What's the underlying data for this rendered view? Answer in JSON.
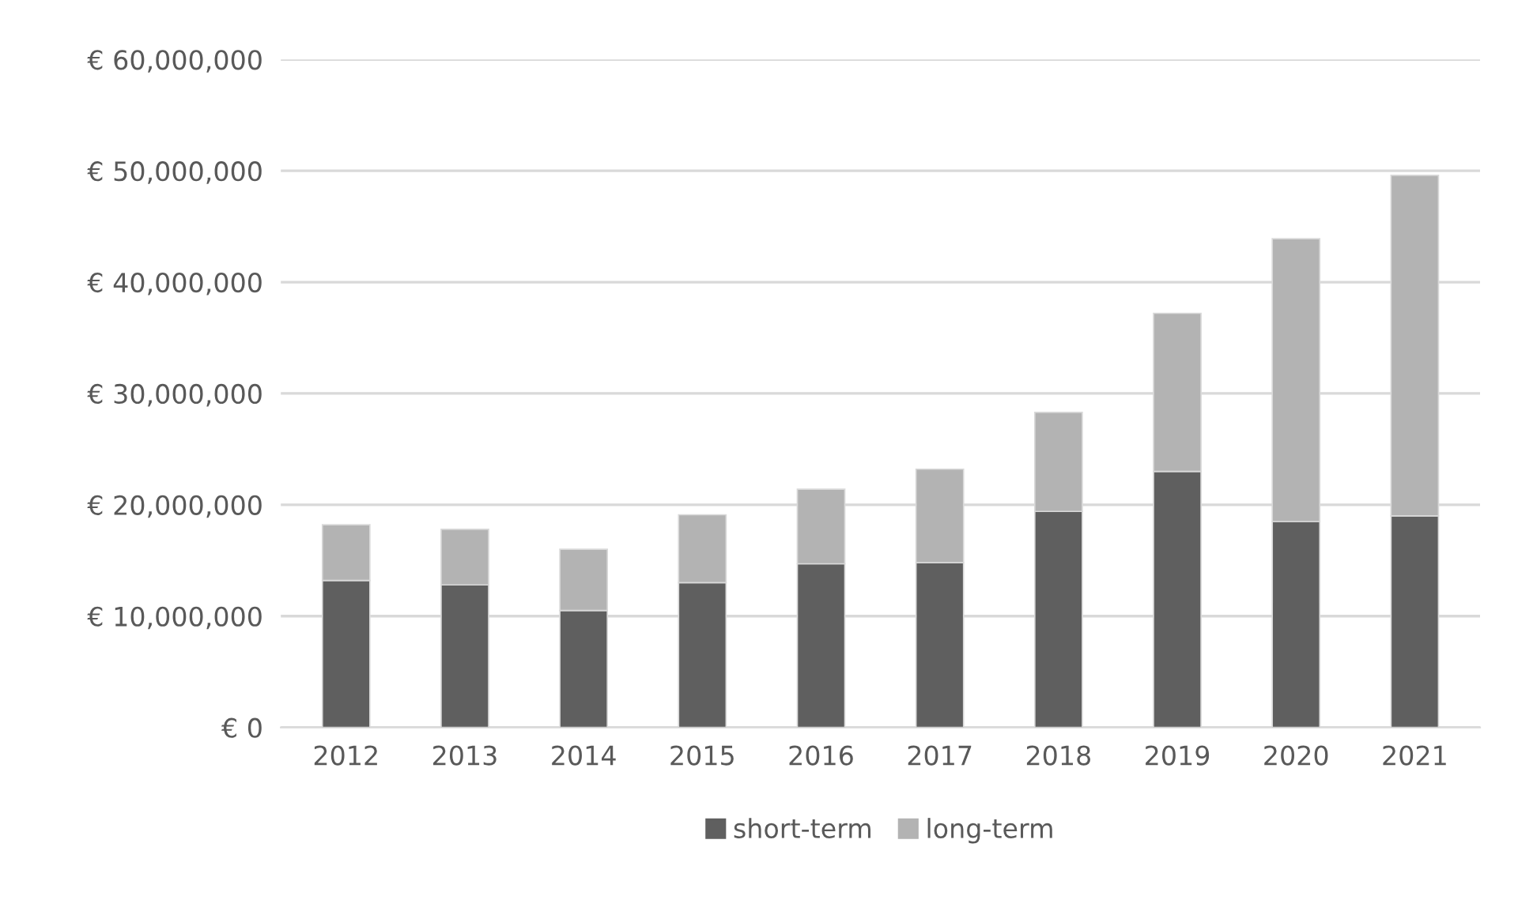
{
  "chart_data": {
    "type": "bar",
    "stacked": true,
    "categories": [
      "2012",
      "2013",
      "2014",
      "2015",
      "2016",
      "2017",
      "2018",
      "2019",
      "2020",
      "2021"
    ],
    "series": [
      {
        "name": "short-term",
        "color": "#5f5f5f",
        "values": [
          13200000,
          12800000,
          10500000,
          13000000,
          14700000,
          14800000,
          19400000,
          23000000,
          18500000,
          19000000
        ]
      },
      {
        "name": "long-term",
        "color": "#b3b3b3",
        "values": [
          5000000,
          5000000,
          5500000,
          6100000,
          6700000,
          8400000,
          8900000,
          14200000,
          25400000,
          30600000
        ]
      }
    ],
    "ylim": [
      0,
      60000000
    ],
    "yticks": [
      {
        "value": 0,
        "label": "€ 0"
      },
      {
        "value": 10000000,
        "label": "€ 10,000,000"
      },
      {
        "value": 20000000,
        "label": "€ 20,000,000"
      },
      {
        "value": 30000000,
        "label": "€ 30,000,000"
      },
      {
        "value": 40000000,
        "label": "€ 40,000,000"
      },
      {
        "value": 50000000,
        "label": "€ 50,000,000"
      },
      {
        "value": 60000000,
        "label": "€ 60,000,000"
      }
    ],
    "grid": "y",
    "legend": "bottom"
  }
}
